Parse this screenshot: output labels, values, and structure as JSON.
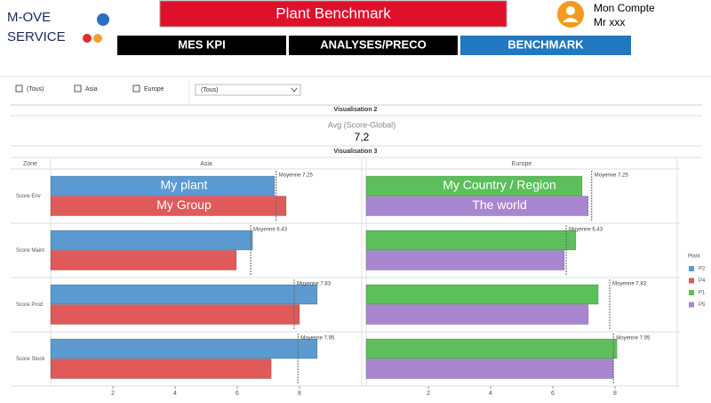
{
  "header": {
    "brand_line1": "M-OVE",
    "brand_line2": "SERVICE",
    "title": "Plant Benchmark",
    "account": "Mon Compte",
    "user": "Mr xxx"
  },
  "nav": [
    "MES KPI",
    "ANALYSES/PRECO",
    "BENCHMARK"
  ],
  "filters": {
    "checkboxes": [
      "(Tous)",
      "Asia",
      "Europe"
    ],
    "dropdown": "(Tous)"
  },
  "kpi": {
    "title": "Visualisation 2",
    "label": "Avg (Score-Global)",
    "value": "7,2"
  },
  "chart_data": {
    "type": "bar",
    "title": "Visualisation 3",
    "row_header": "Zone",
    "categories": [
      "Score Env",
      "Score Maint",
      "Score Prod",
      "Score Stock"
    ],
    "xlim": [
      0,
      10
    ],
    "xticks": [
      2,
      4,
      6,
      8
    ],
    "legend_title": "Plant",
    "legend": "right",
    "panels": [
      {
        "name": "Asia",
        "series": [
          {
            "name": "P2",
            "color": "#5b9bd1",
            "annotation": "My plant",
            "values": [
              7.2,
              6.49,
              8.57,
              8.57
            ]
          },
          {
            "name": "P4",
            "color": "#e05a5a",
            "annotation": "My Group",
            "values": [
              7.57,
              5.97,
              8.0,
              7.09
            ]
          }
        ],
        "reference_lines": [
          {
            "value": 7.25,
            "label": "Moyenne 7.25"
          },
          {
            "value": 6.43,
            "label": "Moyenne 6.43"
          },
          {
            "value": 7.83,
            "label": "Moyenne 7.83"
          },
          {
            "value": 7.95,
            "label": "Moyenne 7.95"
          }
        ]
      },
      {
        "name": "Europe",
        "series": [
          {
            "name": "P1",
            "color": "#5cbf5c",
            "annotation": "My Country / Region",
            "values": [
              6.94,
              6.74,
              7.46,
              8.06
            ]
          },
          {
            "name": "P5",
            "color": "#a987d0",
            "annotation": "The world",
            "values": [
              7.14,
              6.37,
              7.14,
              7.94
            ]
          }
        ],
        "reference_lines": [
          {
            "value": 7.25,
            "label": "Moyenne 7.25"
          },
          {
            "value": 6.43,
            "label": "Moyenne 6.43"
          },
          {
            "value": 7.83,
            "label": "Moyenne 7.83"
          },
          {
            "value": 7.95,
            "label": "Moyenne 7.95"
          }
        ]
      }
    ]
  }
}
